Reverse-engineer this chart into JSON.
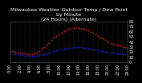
{
  "title": "Milwaukee Weather Outdoor Temp / Dew Point\nby Minute\n(24 Hours) (Alternate)",
  "bg_color": "#000000",
  "plot_bg_color": "#000000",
  "text_color": "#ffffff",
  "grid_color": "#555555",
  "temp_color": "#ff2222",
  "dew_color": "#2222ff",
  "ylim": [
    0,
    80
  ],
  "xlim": [
    0,
    1440
  ],
  "yticks": [
    0,
    10,
    20,
    30,
    40,
    50,
    60,
    70,
    80
  ],
  "xtick_positions": [
    0,
    60,
    120,
    180,
    240,
    300,
    360,
    420,
    480,
    540,
    600,
    660,
    720,
    780,
    840,
    900,
    960,
    1020,
    1080,
    1140,
    1200,
    1260,
    1320,
    1380,
    1440
  ],
  "xtick_labels": [
    "0:00",
    "1:00",
    "2:00",
    "3:00",
    "4:00",
    "5:00",
    "6:00",
    "7:00",
    "8:00",
    "9:00",
    "10:00",
    "11:00",
    "12:00",
    "13:00",
    "14:00",
    "15:00",
    "16:00",
    "17:00",
    "18:00",
    "19:00",
    "20:00",
    "21:00",
    "22:00",
    "23:00",
    "24:00"
  ],
  "temp_x": [
    0,
    30,
    60,
    90,
    120,
    150,
    180,
    210,
    240,
    270,
    300,
    330,
    360,
    390,
    420,
    450,
    480,
    510,
    540,
    570,
    600,
    630,
    660,
    690,
    720,
    750,
    780,
    810,
    840,
    870,
    900,
    930,
    960,
    990,
    1020,
    1050,
    1080,
    1110,
    1140,
    1170,
    1200,
    1230,
    1260,
    1290,
    1320,
    1350,
    1380,
    1410,
    1440
  ],
  "temp_y": [
    22,
    21,
    20,
    19,
    18,
    17,
    17,
    16,
    16,
    15,
    17,
    19,
    22,
    26,
    30,
    34,
    38,
    43,
    48,
    52,
    55,
    58,
    61,
    63,
    65,
    66,
    67,
    68,
    67,
    66,
    65,
    64,
    62,
    60,
    58,
    55,
    52,
    49,
    46,
    43,
    40,
    37,
    35,
    34,
    33,
    32,
    30,
    29,
    28
  ],
  "dew_x": [
    0,
    30,
    60,
    90,
    120,
    150,
    180,
    210,
    240,
    270,
    300,
    330,
    360,
    390,
    420,
    450,
    480,
    510,
    540,
    570,
    600,
    630,
    660,
    690,
    720,
    750,
    780,
    810,
    840,
    870,
    900,
    930,
    960,
    990,
    1020,
    1050,
    1080,
    1110,
    1140,
    1170,
    1200,
    1230,
    1260,
    1290,
    1320,
    1350,
    1380,
    1410,
    1440
  ],
  "dew_y": [
    18,
    17,
    16,
    15,
    14,
    14,
    13,
    12,
    12,
    11,
    12,
    13,
    14,
    15,
    16,
    17,
    18,
    20,
    22,
    23,
    24,
    25,
    26,
    27,
    28,
    28,
    29,
    30,
    30,
    29,
    28,
    28,
    27,
    26,
    25,
    24,
    23,
    22,
    21,
    20,
    20,
    19,
    18,
    18,
    17,
    17,
    16,
    16,
    16
  ],
  "title_fontsize": 4.5,
  "tick_fontsize": 3.5,
  "marker_size": 0.8,
  "linewidth": 0
}
